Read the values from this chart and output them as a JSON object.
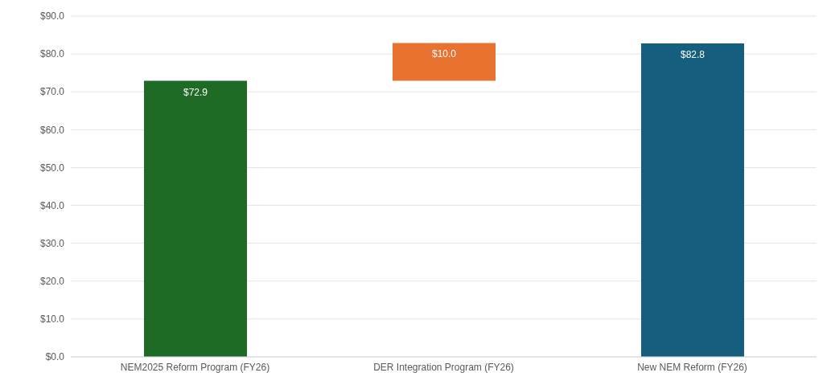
{
  "chart_data": {
    "type": "bar",
    "categories": [
      "NEM2025 Reform Program (FY26)",
      "DER Integration Program (FY26)",
      "New NEM Reform (FY26)"
    ],
    "values": [
      72.9,
      10.0,
      82.8
    ],
    "base": [
      0,
      72.9,
      0
    ],
    "colors": [
      "#1e6b25",
      "#e8722f",
      "#165e7d"
    ],
    "value_labels": [
      "$72.9",
      "$10.0",
      "$82.8"
    ],
    "ylim": [
      0,
      90
    ],
    "yticks": [
      {
        "value": 0,
        "label": "$0.0"
      },
      {
        "value": 10,
        "label": "$10.0"
      },
      {
        "value": 20,
        "label": "$20.0"
      },
      {
        "value": 30,
        "label": "$30.0"
      },
      {
        "value": 40,
        "label": "$40.0"
      },
      {
        "value": 50,
        "label": "$50.0"
      },
      {
        "value": 60,
        "label": "$60.0"
      },
      {
        "value": 70,
        "label": "$70.0"
      },
      {
        "value": 80,
        "label": "$80.0"
      },
      {
        "value": 90,
        "label": "$90.0"
      }
    ],
    "grid": "y"
  }
}
